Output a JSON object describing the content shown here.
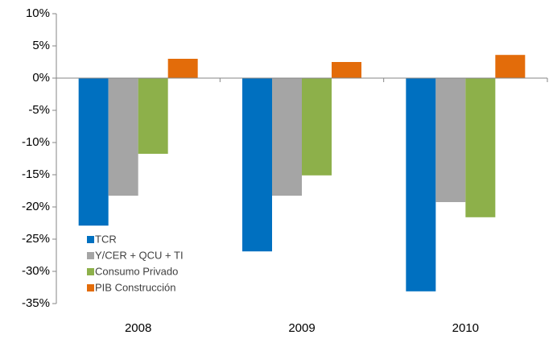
{
  "chart_data": {
    "type": "bar",
    "categories": [
      "2008",
      "2009",
      "2010"
    ],
    "series": [
      {
        "name": "TCR",
        "color": "#0070c0",
        "values": [
          -22.9,
          -26.9,
          -33.1
        ]
      },
      {
        "name": "Y/CER + QCU + TI",
        "color": "#a5a5a5",
        "values": [
          -18.25,
          -18.25,
          -19.25
        ]
      },
      {
        "name": "Consumo Privado",
        "color": "#8db04a",
        "values": [
          -11.75,
          -15.1,
          -21.6
        ]
      },
      {
        "name": "PIB Construcción",
        "color": "#e36c0a",
        "values": [
          3.0,
          2.5,
          3.6
        ]
      }
    ],
    "ylim": [
      -35,
      10
    ],
    "yticks": [
      {
        "value": -35,
        "label": "-35%"
      },
      {
        "value": -30,
        "label": "-30%"
      },
      {
        "value": -25,
        "label": "-25%"
      },
      {
        "value": -20,
        "label": "-20%"
      },
      {
        "value": -15,
        "label": "-15%"
      },
      {
        "value": -10,
        "label": "-10%"
      },
      {
        "value": -5,
        "label": "-5%"
      },
      {
        "value": 0,
        "label": "0%"
      },
      {
        "value": 5,
        "label": "5%"
      },
      {
        "value": 10,
        "label": "10%"
      }
    ],
    "grid": false,
    "legend": "lower left"
  }
}
